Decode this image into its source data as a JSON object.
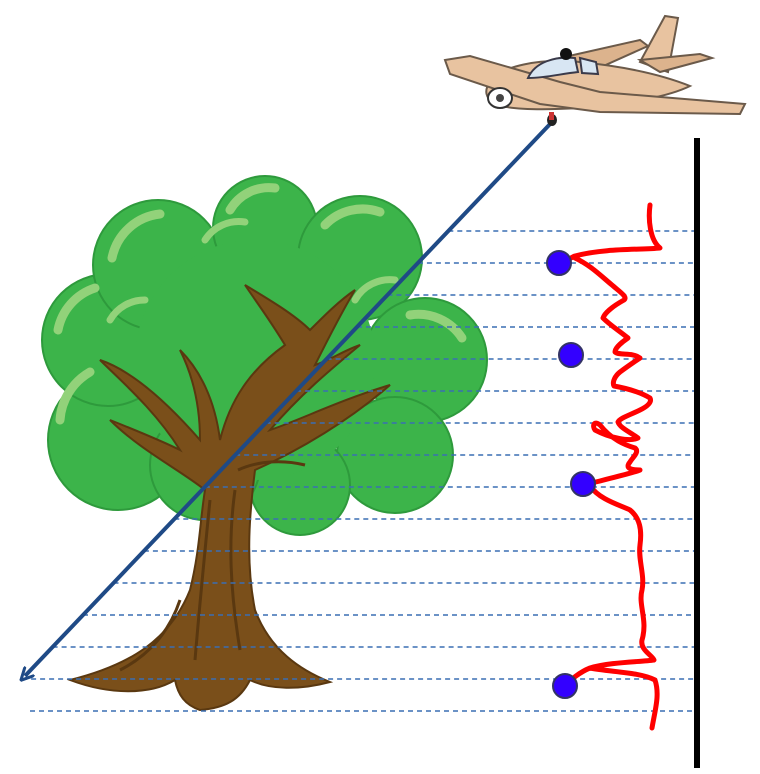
{
  "diagram": {
    "colors": {
      "background": "#ffffff",
      "scan_line": "#3a6fb3",
      "laser_beam": "#1f4a86",
      "wall": "#000000",
      "waveform": "#ff0000",
      "return_marker": "#3300ff",
      "return_marker_stroke": "#333366",
      "foliage_dark": "#3cb44a",
      "foliage_light": "#92d27a",
      "trunk": "#7a4f1a",
      "trunk_dark": "#5a3810",
      "airplane_body": "#e8c3a0",
      "airplane_stroke": "#6b5a4a"
    },
    "scan_line_count": 16,
    "return_marker_count": 4
  }
}
